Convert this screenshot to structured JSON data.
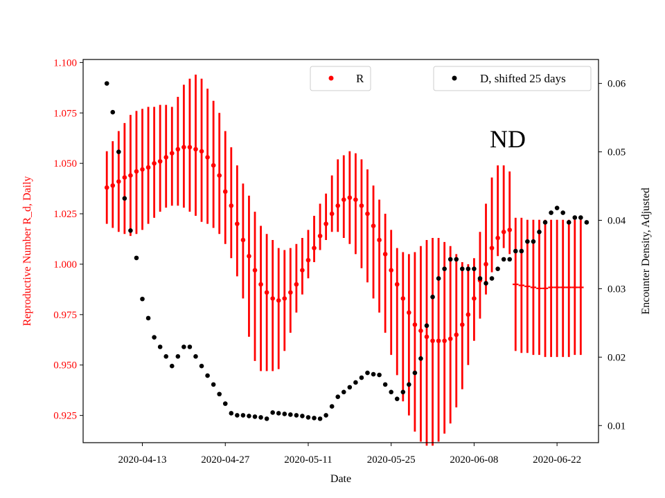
{
  "chart_data": {
    "type": "scatter",
    "annotation": "ND",
    "xlabel": "Date",
    "ylabel_left": "Reproductive Number R_d, Daily",
    "ylabel_right": "Encounter Density, Adjusted",
    "x_range": [
      "2020-04-03",
      "2020-06-29"
    ],
    "x_ticks": [
      "2020-04-13",
      "2020-04-27",
      "2020-05-11",
      "2020-05-25",
      "2020-06-08",
      "2020-06-22"
    ],
    "ylim_left": [
      0.9115,
      1.1015
    ],
    "yticks_left": [
      "0.925",
      "0.950",
      "0.975",
      "1.000",
      "1.025",
      "1.050",
      "1.075",
      "1.100"
    ],
    "ylim_right": [
      0.0075,
      0.0635
    ],
    "yticks_right": [
      "0.01",
      "0.02",
      "0.03",
      "0.04",
      "0.05",
      "0.06"
    ],
    "legend_R": "R",
    "legend_D": "D, shifted 25 days",
    "colors": {
      "R": "#ff0000",
      "D": "#000000"
    },
    "series": [
      {
        "name": "R",
        "axis": "left",
        "start_date": "2020-04-07",
        "step_days": 1,
        "values": [
          1.038,
          1.039,
          1.041,
          1.043,
          1.044,
          1.046,
          1.047,
          1.048,
          1.05,
          1.051,
          1.053,
          1.055,
          1.057,
          1.058,
          1.058,
          1.057,
          1.056,
          1.053,
          1.049,
          1.044,
          1.036,
          1.029,
          1.02,
          1.012,
          1.004,
          0.997,
          0.99,
          0.986,
          0.983,
          0.982,
          0.983,
          0.986,
          0.99,
          0.997,
          1.002,
          1.008,
          1.014,
          1.02,
          1.025,
          1.029,
          1.032,
          1.033,
          1.032,
          1.029,
          1.025,
          1.019,
          1.012,
          1.005,
          0.997,
          0.99,
          0.983,
          0.976,
          0.97,
          0.967,
          0.964,
          0.962,
          0.962,
          0.962,
          0.963,
          0.965,
          0.97,
          0.975,
          0.983,
          0.992,
          1.0,
          1.008,
          1.013,
          1.016,
          1.017
        ],
        "lower": [
          1.02,
          1.018,
          1.016,
          1.015,
          1.014,
          1.015,
          1.017,
          1.02,
          1.023,
          1.026,
          1.028,
          1.029,
          1.029,
          1.028,
          1.026,
          1.024,
          1.021,
          1.02,
          1.018,
          1.015,
          1.01,
          1.003,
          0.994,
          0.983,
          0.964,
          0.952,
          0.947,
          0.947,
          0.947,
          0.948,
          0.957,
          0.966,
          0.976,
          0.985,
          0.993,
          1.001,
          1.007,
          1.012,
          1.016,
          1.016,
          1.013,
          1.01,
          1.005,
          0.998,
          0.991,
          0.983,
          0.976,
          0.966,
          0.955,
          0.945,
          0.932,
          0.925,
          0.917,
          0.912,
          0.91,
          0.91,
          0.912,
          0.916,
          0.921,
          0.929,
          0.938,
          0.95,
          0.962,
          0.973,
          0.985,
          0.996,
          1.004,
          1.008,
          1.005
        ],
        "upper": [
          1.056,
          1.061,
          1.066,
          1.07,
          1.074,
          1.076,
          1.077,
          1.078,
          1.078,
          1.079,
          1.079,
          1.078,
          1.083,
          1.089,
          1.092,
          1.094,
          1.092,
          1.087,
          1.081,
          1.075,
          1.066,
          1.058,
          1.049,
          1.04,
          1.034,
          1.026,
          1.019,
          1.015,
          1.012,
          1.008,
          1.007,
          1.008,
          1.01,
          1.013,
          1.017,
          1.024,
          1.03,
          1.035,
          1.044,
          1.052,
          1.054,
          1.056,
          1.055,
          1.052,
          1.047,
          1.039,
          1.032,
          1.025,
          1.017,
          1.008,
          1.006,
          1.005,
          1.006,
          1.009,
          1.012,
          1.013,
          1.013,
          1.011,
          1.009,
          1.005,
          1.001,
          1.0,
          1.003,
          1.016,
          1.03,
          1.043,
          1.049,
          1.049,
          1.046
        ]
      },
      {
        "name": "R_flat",
        "axis": "left",
        "start_date": "2020-06-15",
        "step_days": 1,
        "values": [
          0.99,
          0.9895,
          0.989,
          0.9885,
          0.988,
          0.988,
          0.9885,
          0.9885,
          0.9885,
          0.9885,
          0.9885,
          0.9885
        ],
        "lower": [
          0.957,
          0.956,
          0.956,
          0.955,
          0.955,
          0.954,
          0.954,
          0.954,
          0.954,
          0.954,
          0.955,
          0.955
        ],
        "upper": [
          1.023,
          1.023,
          1.022,
          1.022,
          1.022,
          1.022,
          1.022,
          1.022,
          1.022,
          1.022,
          1.022,
          1.022
        ]
      },
      {
        "name": "D, shifted 25 days",
        "axis": "right",
        "start_date": "2020-04-07",
        "step_days": 1,
        "values": [
          0.06,
          0.0558,
          0.05,
          0.0432,
          0.0385,
          0.0345,
          0.0285,
          0.0257,
          0.0229,
          0.0215,
          0.0201,
          0.0187,
          0.0201,
          0.0215,
          0.0215,
          0.0201,
          0.0187,
          0.0173,
          0.016,
          0.0146,
          0.0132,
          0.0118,
          0.0115,
          0.0115,
          0.0114,
          0.0113,
          0.0112,
          0.011,
          0.0119,
          0.0118,
          0.0117,
          0.0116,
          0.0115,
          0.0114,
          0.0112,
          0.0111,
          0.011,
          0.0115,
          0.0128,
          0.0142,
          0.0149,
          0.0156,
          0.0163,
          0.017,
          0.0177,
          0.0175,
          0.0174,
          0.016,
          0.0149,
          0.0139,
          0.0149,
          0.016,
          0.0177,
          0.0198,
          0.0246,
          0.0288,
          0.0315,
          0.0329,
          0.0343,
          0.0343,
          0.0329,
          0.0329,
          0.0329,
          0.0315,
          0.0308,
          0.0315,
          0.0329,
          0.0343,
          0.0343,
          0.0355,
          0.0355,
          0.0369,
          0.0369,
          0.0383,
          0.0397,
          0.0411,
          0.0418,
          0.0411,
          0.0397,
          0.0404,
          0.0404,
          0.0397
        ]
      }
    ]
  }
}
